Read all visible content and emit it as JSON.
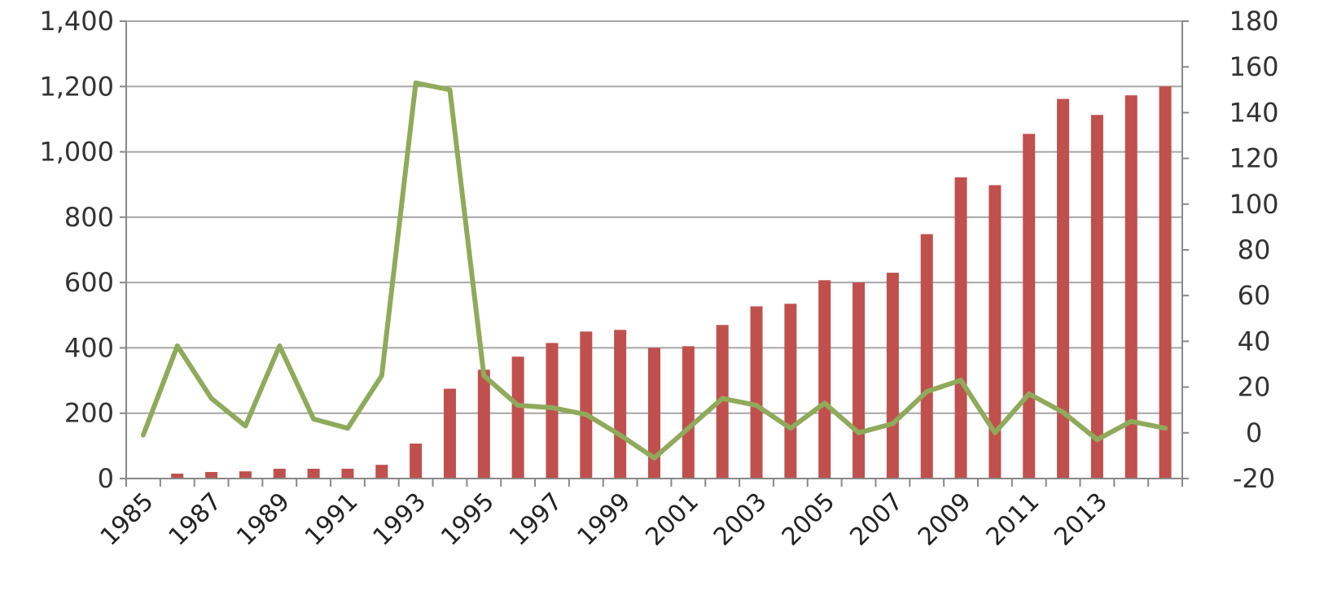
{
  "chart_data": {
    "type": "bar",
    "title": "",
    "xlabel": "",
    "ylabel": "",
    "x": [
      1985,
      1986,
      1987,
      1988,
      1989,
      1990,
      1991,
      1992,
      1993,
      1994,
      1995,
      1996,
      1997,
      1998,
      1999,
      2000,
      2001,
      2002,
      2003,
      2004,
      2005,
      2006,
      2007,
      2008,
      2009,
      2010,
      2011,
      2012,
      2013,
      2014,
      2015
    ],
    "x_tick_labels": [
      "1985",
      "1987",
      "1989",
      "1991",
      "1993",
      "1995",
      "1997",
      "1999",
      "2001",
      "2003",
      "2005",
      "2007",
      "2009",
      "2011",
      "2013"
    ],
    "y_left_ticks": [
      "0",
      "200",
      "400",
      "600",
      "800",
      "1,000",
      "1,200",
      "1,400"
    ],
    "y_right_ticks": [
      "-20",
      "0",
      "20",
      "40",
      "60",
      "80",
      "100",
      "120",
      "140",
      "160",
      "180"
    ],
    "ylim_left": [
      0,
      1400
    ],
    "ylim_right": [
      -20,
      180
    ],
    "grid": true,
    "legend": "none",
    "series": [
      {
        "type": "bar",
        "axis": "left",
        "color": "#c0504d",
        "values": [
          0,
          15,
          20,
          22,
          30,
          30,
          30,
          42,
          107,
          275,
          333,
          373,
          415,
          450,
          455,
          400,
          405,
          470,
          527,
          535,
          607,
          600,
          630,
          748,
          922,
          898,
          1055,
          1162,
          1113,
          1173,
          1200
        ]
      },
      {
        "type": "line",
        "axis": "right",
        "color": "#8faa5b",
        "values": [
          -1,
          38,
          15,
          3,
          38,
          6,
          2,
          25,
          153,
          150,
          25,
          12,
          11,
          8,
          -1,
          -11,
          2,
          15,
          12,
          2,
          13,
          0,
          4,
          18,
          23,
          0,
          17,
          9,
          -3,
          5,
          2
        ]
      }
    ]
  }
}
